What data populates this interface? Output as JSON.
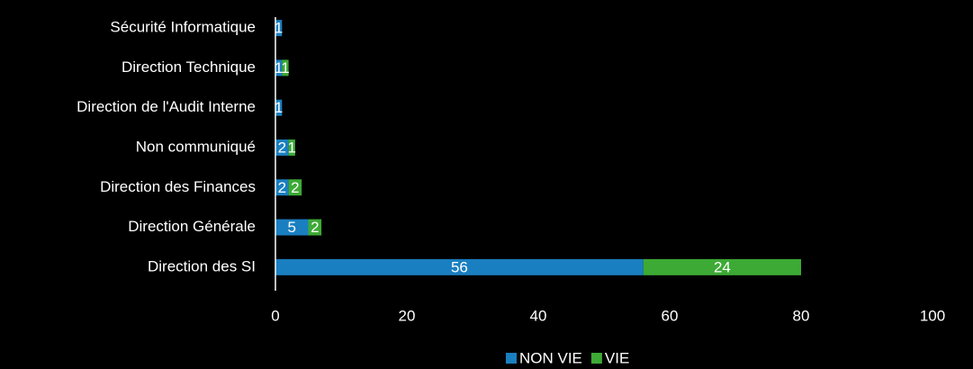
{
  "chart_data": {
    "type": "stacked_barh",
    "categories": [
      "Sécurité Informatique",
      "Direction Technique",
      "Direction de l'Audit Interne",
      "Non communiqué",
      "Direction des Finances",
      "Direction Générale",
      "Direction des SI"
    ],
    "series": [
      {
        "name": "NON VIE",
        "color": "#1a7fc0",
        "values": [
          1,
          1,
          1,
          2,
          2,
          5,
          56
        ]
      },
      {
        "name": "VIE",
        "color": "#3daa35",
        "values": [
          null,
          1,
          null,
          1,
          2,
          2,
          24
        ]
      }
    ],
    "xlim": [
      0,
      100
    ],
    "xticks": [
      0,
      20,
      40,
      60,
      80,
      100
    ],
    "legend": "bottom"
  }
}
